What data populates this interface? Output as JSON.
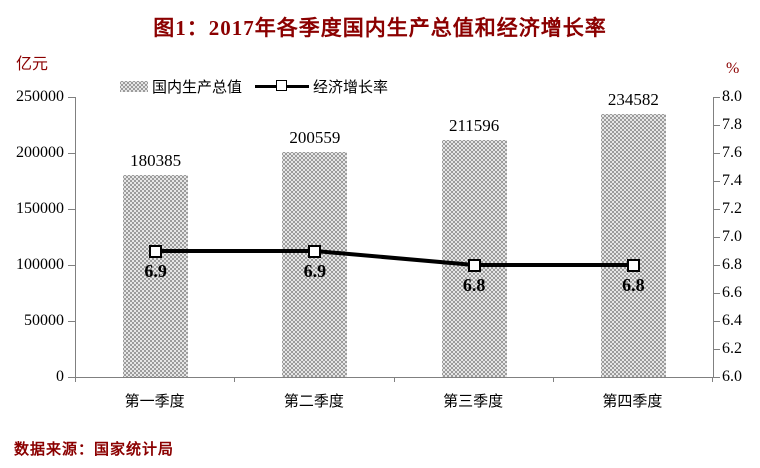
{
  "title": "图1：2017年各季度国内生产总值和经济增长率",
  "source": "数据来源：国家统计局",
  "legend": {
    "bar_label": "国内生产总值",
    "line_label": "经济增长率"
  },
  "colors": {
    "accent": "#8B0000",
    "bar": "#9C9C9C",
    "line": "#000000",
    "axis": "#808080",
    "text": "#000000"
  },
  "chart_data": {
    "type": "bar+line",
    "title": "图1：2017年各季度国内生产总值和经济增长率",
    "categories": [
      "第一季度",
      "第二季度",
      "第三季度",
      "第四季度"
    ],
    "series": [
      {
        "name": "国内生产总值",
        "type": "bar",
        "axis": "left",
        "values": [
          180385,
          200559,
          211596,
          234582
        ]
      },
      {
        "name": "经济增长率",
        "type": "line",
        "axis": "right",
        "values": [
          6.9,
          6.9,
          6.8,
          6.8
        ]
      }
    ],
    "left_axis": {
      "label": "亿元",
      "min": 0,
      "max": 250000,
      "step": 50000
    },
    "right_axis": {
      "label": "%",
      "min": 6.0,
      "max": 8.0,
      "step": 0.2
    },
    "grid": false,
    "legend_position": "top"
  }
}
